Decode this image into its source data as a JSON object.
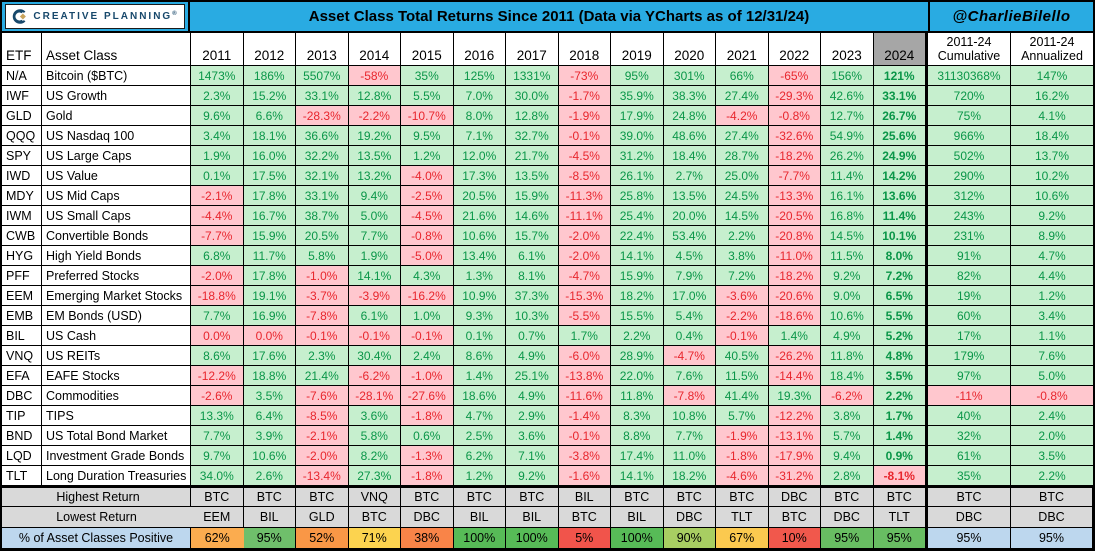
{
  "banner": {
    "logo_brand": "CREATIVE PLANNING",
    "logo_reg_mark": "®",
    "title": "Asset Class Total Returns Since 2011 (Data via YCharts as of 12/31/24)",
    "handle": "@CharlieBilello",
    "accent_color": "#29ABE2",
    "logo_navy": "#17486B",
    "logo_gold": "#C9A45C"
  },
  "table": {
    "headers": {
      "etf": "ETF",
      "asset_class": "Asset Class",
      "years": [
        "2011",
        "2012",
        "2013",
        "2014",
        "2015",
        "2016",
        "2017",
        "2018",
        "2019",
        "2020",
        "2021",
        "2022",
        "2023",
        "2024"
      ],
      "cumulative_line1": "2011-24",
      "cumulative_line2": "Cumulative",
      "annualized_line1": "2011-24",
      "annualized_line2": "Annualized",
      "year_2024_header_bg": "#A6A6A6"
    },
    "colors": {
      "positive_bg": "#C6EFCE",
      "positive_text": "#0A9648",
      "negative_bg": "#FFC7CE",
      "negative_text": "#E8262D",
      "summary_bg": "#D9D9D9",
      "blue_bg": "#BDD7EE"
    },
    "rows": [
      {
        "etf": "N/A",
        "name": "Bitcoin ($BTC)",
        "values": [
          "1473%",
          "186%",
          "5507%",
          "-58%",
          "35%",
          "125%",
          "1331%",
          "-73%",
          "95%",
          "301%",
          "66%",
          "-65%",
          "156%",
          "121%"
        ],
        "cumulative": "31130368%",
        "annualized": "147%"
      },
      {
        "etf": "IWF",
        "name": "US Growth",
        "values": [
          "2.3%",
          "15.2%",
          "33.1%",
          "12.8%",
          "5.5%",
          "7.0%",
          "30.0%",
          "-1.7%",
          "35.9%",
          "38.3%",
          "27.4%",
          "-29.3%",
          "42.6%",
          "33.1%"
        ],
        "cumulative": "720%",
        "annualized": "16.2%"
      },
      {
        "etf": "GLD",
        "name": "Gold",
        "values": [
          "9.6%",
          "6.6%",
          "-28.3%",
          "-2.2%",
          "-10.7%",
          "8.0%",
          "12.8%",
          "-1.9%",
          "17.9%",
          "24.8%",
          "-4.2%",
          "-0.8%",
          "12.7%",
          "26.7%"
        ],
        "cumulative": "75%",
        "annualized": "4.1%"
      },
      {
        "etf": "QQQ",
        "name": "US Nasdaq 100",
        "values": [
          "3.4%",
          "18.1%",
          "36.6%",
          "19.2%",
          "9.5%",
          "7.1%",
          "32.7%",
          "-0.1%",
          "39.0%",
          "48.6%",
          "27.4%",
          "-32.6%",
          "54.9%",
          "25.6%"
        ],
        "cumulative": "966%",
        "annualized": "18.4%"
      },
      {
        "etf": "SPY",
        "name": "US Large Caps",
        "values": [
          "1.9%",
          "16.0%",
          "32.2%",
          "13.5%",
          "1.2%",
          "12.0%",
          "21.7%",
          "-4.5%",
          "31.2%",
          "18.4%",
          "28.7%",
          "-18.2%",
          "26.2%",
          "24.9%"
        ],
        "cumulative": "502%",
        "annualized": "13.7%"
      },
      {
        "etf": "IWD",
        "name": "US Value",
        "values": [
          "0.1%",
          "17.5%",
          "32.1%",
          "13.2%",
          "-4.0%",
          "17.3%",
          "13.5%",
          "-8.5%",
          "26.1%",
          "2.7%",
          "25.0%",
          "-7.7%",
          "11.4%",
          "14.2%"
        ],
        "cumulative": "290%",
        "annualized": "10.2%"
      },
      {
        "etf": "MDY",
        "name": "US Mid Caps",
        "values": [
          "-2.1%",
          "17.8%",
          "33.1%",
          "9.4%",
          "-2.5%",
          "20.5%",
          "15.9%",
          "-11.3%",
          "25.8%",
          "13.5%",
          "24.5%",
          "-13.3%",
          "16.1%",
          "13.6%"
        ],
        "cumulative": "312%",
        "annualized": "10.6%"
      },
      {
        "etf": "IWM",
        "name": "US Small Caps",
        "values": [
          "-4.4%",
          "16.7%",
          "38.7%",
          "5.0%",
          "-4.5%",
          "21.6%",
          "14.6%",
          "-11.1%",
          "25.4%",
          "20.0%",
          "14.5%",
          "-20.5%",
          "16.8%",
          "11.4%"
        ],
        "cumulative": "243%",
        "annualized": "9.2%"
      },
      {
        "etf": "CWB",
        "name": "Convertible Bonds",
        "values": [
          "-7.7%",
          "15.9%",
          "20.5%",
          "7.7%",
          "-0.8%",
          "10.6%",
          "15.7%",
          "-2.0%",
          "22.4%",
          "53.4%",
          "2.2%",
          "-20.8%",
          "14.5%",
          "10.1%"
        ],
        "cumulative": "231%",
        "annualized": "8.9%"
      },
      {
        "etf": "HYG",
        "name": "High Yield Bonds",
        "values": [
          "6.8%",
          "11.7%",
          "5.8%",
          "1.9%",
          "-5.0%",
          "13.4%",
          "6.1%",
          "-2.0%",
          "14.1%",
          "4.5%",
          "3.8%",
          "-11.0%",
          "11.5%",
          "8.0%"
        ],
        "cumulative": "91%",
        "annualized": "4.7%"
      },
      {
        "etf": "PFF",
        "name": "Preferred Stocks",
        "values": [
          "-2.0%",
          "17.8%",
          "-1.0%",
          "14.1%",
          "4.3%",
          "1.3%",
          "8.1%",
          "-4.7%",
          "15.9%",
          "7.9%",
          "7.2%",
          "-18.2%",
          "9.2%",
          "7.2%"
        ],
        "cumulative": "82%",
        "annualized": "4.4%"
      },
      {
        "etf": "EEM",
        "name": "Emerging Market Stocks",
        "values": [
          "-18.8%",
          "19.1%",
          "-3.7%",
          "-3.9%",
          "-16.2%",
          "10.9%",
          "37.3%",
          "-15.3%",
          "18.2%",
          "17.0%",
          "-3.6%",
          "-20.6%",
          "9.0%",
          "6.5%"
        ],
        "cumulative": "19%",
        "annualized": "1.2%"
      },
      {
        "etf": "EMB",
        "name": "EM Bonds (USD)",
        "values": [
          "7.7%",
          "16.9%",
          "-7.8%",
          "6.1%",
          "1.0%",
          "9.3%",
          "10.3%",
          "-5.5%",
          "15.5%",
          "5.4%",
          "-2.2%",
          "-18.6%",
          "10.6%",
          "5.5%"
        ],
        "cumulative": "60%",
        "annualized": "3.4%"
      },
      {
        "etf": "BIL",
        "name": "US Cash",
        "values": [
          "0.0%",
          "0.0%",
          "-0.1%",
          "-0.1%",
          "-0.1%",
          "0.1%",
          "0.7%",
          "1.7%",
          "2.2%",
          "0.4%",
          "-0.1%",
          "1.4%",
          "4.9%",
          "5.2%"
        ],
        "cumulative": "17%",
        "annualized": "1.1%"
      },
      {
        "etf": "VNQ",
        "name": "US REITs",
        "values": [
          "8.6%",
          "17.6%",
          "2.3%",
          "30.4%",
          "2.4%",
          "8.6%",
          "4.9%",
          "-6.0%",
          "28.9%",
          "-4.7%",
          "40.5%",
          "-26.2%",
          "11.8%",
          "4.8%"
        ],
        "cumulative": "179%",
        "annualized": "7.6%"
      },
      {
        "etf": "EFA",
        "name": "EAFE Stocks",
        "values": [
          "-12.2%",
          "18.8%",
          "21.4%",
          "-6.2%",
          "-1.0%",
          "1.4%",
          "25.1%",
          "-13.8%",
          "22.0%",
          "7.6%",
          "11.5%",
          "-14.4%",
          "18.4%",
          "3.5%"
        ],
        "cumulative": "97%",
        "annualized": "5.0%"
      },
      {
        "etf": "DBC",
        "name": "Commodities",
        "values": [
          "-2.6%",
          "3.5%",
          "-7.6%",
          "-28.1%",
          "-27.6%",
          "18.6%",
          "4.9%",
          "-11.6%",
          "11.8%",
          "-7.8%",
          "41.4%",
          "19.3%",
          "-6.2%",
          "2.2%"
        ],
        "cumulative": "-11%",
        "annualized": "-0.8%"
      },
      {
        "etf": "TIP",
        "name": "TIPS",
        "values": [
          "13.3%",
          "6.4%",
          "-8.5%",
          "3.6%",
          "-1.8%",
          "4.7%",
          "2.9%",
          "-1.4%",
          "8.3%",
          "10.8%",
          "5.7%",
          "-12.2%",
          "3.8%",
          "1.7%"
        ],
        "cumulative": "40%",
        "annualized": "2.4%"
      },
      {
        "etf": "BND",
        "name": "US Total Bond Market",
        "values": [
          "7.7%",
          "3.9%",
          "-2.1%",
          "5.8%",
          "0.6%",
          "2.5%",
          "3.6%",
          "-0.1%",
          "8.8%",
          "7.7%",
          "-1.9%",
          "-13.1%",
          "5.7%",
          "1.4%"
        ],
        "cumulative": "32%",
        "annualized": "2.0%"
      },
      {
        "etf": "LQD",
        "name": "Investment Grade Bonds",
        "values": [
          "9.7%",
          "10.6%",
          "-2.0%",
          "8.2%",
          "-1.3%",
          "6.2%",
          "7.1%",
          "-3.8%",
          "17.4%",
          "11.0%",
          "-1.8%",
          "-17.9%",
          "9.4%",
          "0.9%"
        ],
        "cumulative": "61%",
        "annualized": "3.5%"
      },
      {
        "etf": "TLT",
        "name": "Long Duration Treasuries",
        "values": [
          "34.0%",
          "2.6%",
          "-13.4%",
          "27.3%",
          "-1.8%",
          "1.2%",
          "9.2%",
          "-1.6%",
          "14.1%",
          "18.2%",
          "-4.6%",
          "-31.2%",
          "2.8%",
          "-8.1%"
        ],
        "cumulative": "35%",
        "annualized": "2.2%"
      }
    ],
    "summary": {
      "highest_label": "Highest Return",
      "highest": [
        "BTC",
        "BTC",
        "BTC",
        "VNQ",
        "BTC",
        "BTC",
        "BTC",
        "BIL",
        "BTC",
        "BTC",
        "BTC",
        "DBC",
        "BTC",
        "BTC",
        "BTC",
        "BTC"
      ],
      "lowest_label": "Lowest Return",
      "lowest": [
        "EEM",
        "BIL",
        "GLD",
        "BTC",
        "DBC",
        "BIL",
        "BIL",
        "BTC",
        "BIL",
        "DBC",
        "TLT",
        "BTC",
        "DBC",
        "TLT",
        "DBC",
        "DBC"
      ],
      "pct_label": "% of Asset Classes Positive",
      "pct": [
        "62%",
        "95%",
        "52%",
        "71%",
        "38%",
        "100%",
        "100%",
        "5%",
        "100%",
        "90%",
        "67%",
        "10%",
        "95%",
        "95%",
        "95%",
        "95%"
      ],
      "pct_colors": [
        "#FBAC4F",
        "#6FBF6B",
        "#F99746",
        "#FCD34F",
        "#F98448",
        "#57BB57",
        "#57BB57",
        "#F1544B",
        "#57BB57",
        "#A8CE62",
        "#FBC94F",
        "#F1584C",
        "#68BD62",
        "#68BD62",
        "#BDD7EE",
        "#BDD7EE"
      ]
    }
  }
}
